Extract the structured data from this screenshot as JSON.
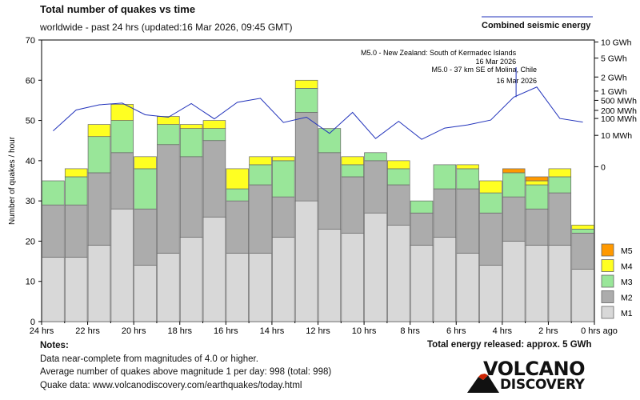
{
  "chart_data": {
    "type": "bar",
    "stacked": true,
    "title": "Total number of quakes vs time",
    "subtitle": "worldwide - past 24 hrs (updated:16 Mar 2026, 09:45 GMT)",
    "ylabel": "Number of quakes / hour",
    "ylim": [
      0,
      70
    ],
    "yticks": [
      0,
      10,
      20,
      30,
      40,
      50,
      60,
      70
    ],
    "xtick_labels": [
      "24 hrs",
      "22 hrs",
      "20 hrs",
      "18 hrs",
      "16 hrs",
      "14 hrs",
      "12 hrs",
      "10 hrs",
      "8 hrs",
      "6 hrs",
      "4 hrs",
      "2 hrs",
      "0 hrs ago"
    ],
    "hours_ago": [
      23.5,
      22.5,
      21.5,
      20.5,
      19.5,
      18.5,
      17.5,
      16.5,
      15.5,
      14.5,
      13.5,
      12.5,
      11.5,
      10.5,
      9.5,
      8.5,
      7.5,
      6.5,
      5.5,
      4.5,
      3.5,
      2.5,
      1.5,
      0.5
    ],
    "series": [
      {
        "name": "M1",
        "color": "#d8d8d8",
        "values": [
          16,
          16,
          19,
          28,
          14,
          17,
          21,
          26,
          17,
          17,
          21,
          30,
          23,
          22,
          27,
          24,
          19,
          21,
          17,
          14,
          20,
          19,
          19,
          13
        ]
      },
      {
        "name": "M2",
        "color": "#acacac",
        "values": [
          13,
          13,
          18,
          14,
          14,
          27,
          20,
          19,
          13,
          17,
          10,
          22,
          19,
          14,
          13,
          10,
          8,
          12,
          16,
          13,
          11,
          9,
          13,
          9
        ]
      },
      {
        "name": "M3",
        "color": "#99e699",
        "values": [
          6,
          7,
          9,
          8,
          10,
          5,
          7,
          3,
          3,
          5,
          9,
          6,
          6,
          3,
          2,
          4,
          3,
          6,
          5,
          5,
          6,
          6,
          4,
          1
        ]
      },
      {
        "name": "M4",
        "color": "#ffff22",
        "values": [
          0,
          2,
          3,
          4,
          3,
          2,
          1,
          2,
          5,
          2,
          1,
          2,
          0,
          2,
          0,
          2,
          0,
          0,
          1,
          3,
          0,
          1,
          2,
          1
        ]
      },
      {
        "name": "M5",
        "color": "#ff9900",
        "values": [
          0,
          0,
          0,
          0,
          0,
          0,
          0,
          0,
          0,
          0,
          0,
          0,
          0,
          0,
          0,
          0,
          0,
          0,
          0,
          0,
          1,
          1,
          0,
          0
        ]
      }
    ],
    "energy_series": {
      "name": "Combined seismic energy",
      "color": "#2233bb",
      "axis_labels": [
        "10 GWh",
        "5 GWh",
        "2 GWh",
        "1 GWh",
        "500 MWh",
        "200 MWh",
        "100 MWh",
        "10 MWh",
        "0"
      ],
      "axis_values": [
        69.5,
        65.5,
        60.8,
        57.3,
        55.0,
        52.5,
        50.5,
        46.3,
        38.5
      ],
      "values": [
        47.4,
        52.6,
        53.9,
        54.3,
        51.4,
        50.8,
        54.2,
        50.4,
        54.5,
        55.5,
        49.5,
        50.8,
        46.8,
        52.0,
        45.5,
        49.8,
        45.3,
        48.1,
        48.9,
        50.1,
        55.8,
        58.3,
        50.5,
        49.6
      ]
    },
    "annotations": [
      {
        "text": "M5.0 - New Zealand: South of Kermadec Islands",
        "date": "16 Mar 2026",
        "hours_ago": 3.4
      },
      {
        "text": "M5.0 - 37 km SE of Molina, Chile",
        "date": "16 Mar 2026",
        "hours_ago": 2.5
      }
    ],
    "legend_position": "bottom-right",
    "legend": [
      "M5",
      "M4",
      "M3",
      "M2",
      "M1"
    ]
  },
  "legend_label_energy": "Combined seismic energy",
  "notes": {
    "title": "Notes:",
    "lines": [
      "Data near-complete from magnitudes of 4.0 or higher.",
      "Average number of quakes above magnitude 1 per day: 998 (total: 998)",
      "Quake data: www.volcanodiscovery.com/earthquakes/today.html"
    ]
  },
  "total_energy": "Total energy released: approx. 5 GWh",
  "logo": {
    "word1": "VOLCANO",
    "word2": "DISCOVERY"
  }
}
